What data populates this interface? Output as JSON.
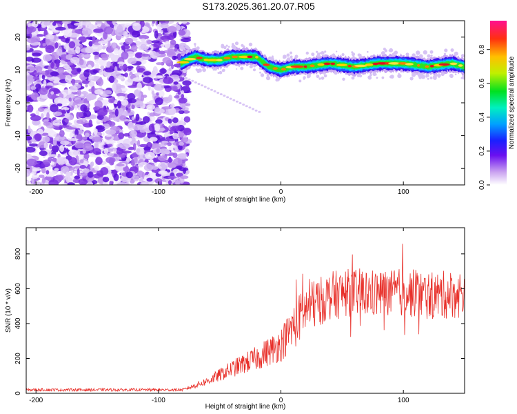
{
  "title": "S173.2025.361.20.07.R05",
  "chart_data": [
    {
      "type": "heatmap",
      "xlabel": "Height of straight line (km)",
      "ylabel": "Frequency (Hz)",
      "xlim": [
        -208,
        150
      ],
      "ylim": [
        -25,
        25
      ],
      "xticks": [
        -200,
        -100,
        0,
        100
      ],
      "yticks": [
        -20,
        -10,
        0,
        10,
        20
      ],
      "colorbar": {
        "label": "Normalized spectral amplitude",
        "range": [
          0,
          0.97
        ],
        "ticks": [
          0.0,
          0.2,
          0.4,
          0.6,
          0.8
        ]
      },
      "noise_region_x": [
        -208,
        -80
      ],
      "ridge": {
        "x": [
          -82,
          -70,
          -60,
          -50,
          -40,
          -30,
          -20,
          -10,
          0,
          10,
          20,
          40,
          60,
          80,
          100,
          120,
          140,
          150
        ],
        "frequency": [
          12,
          14,
          13,
          13,
          14,
          14,
          14,
          11,
          10,
          11,
          11,
          12,
          11,
          12,
          12,
          11,
          12,
          11
        ]
      }
    },
    {
      "type": "line",
      "xlabel": "Height of straight line (km)",
      "ylabel": "SNR (10 * v/v)",
      "xlim": [
        -208,
        150
      ],
      "ylim": [
        0,
        950
      ],
      "xticks": [
        -200,
        -100,
        0,
        100
      ],
      "yticks": [
        0,
        200,
        400,
        600,
        800
      ],
      "color": "#e8302a",
      "trend": {
        "x": [
          -208,
          -80,
          -60,
          -40,
          -20,
          0,
          10,
          20,
          40,
          60,
          80,
          100,
          120,
          150
        ],
        "y": [
          20,
          20,
          70,
          140,
          200,
          280,
          380,
          480,
          560,
          580,
          570,
          580,
          560,
          570
        ]
      }
    }
  ]
}
